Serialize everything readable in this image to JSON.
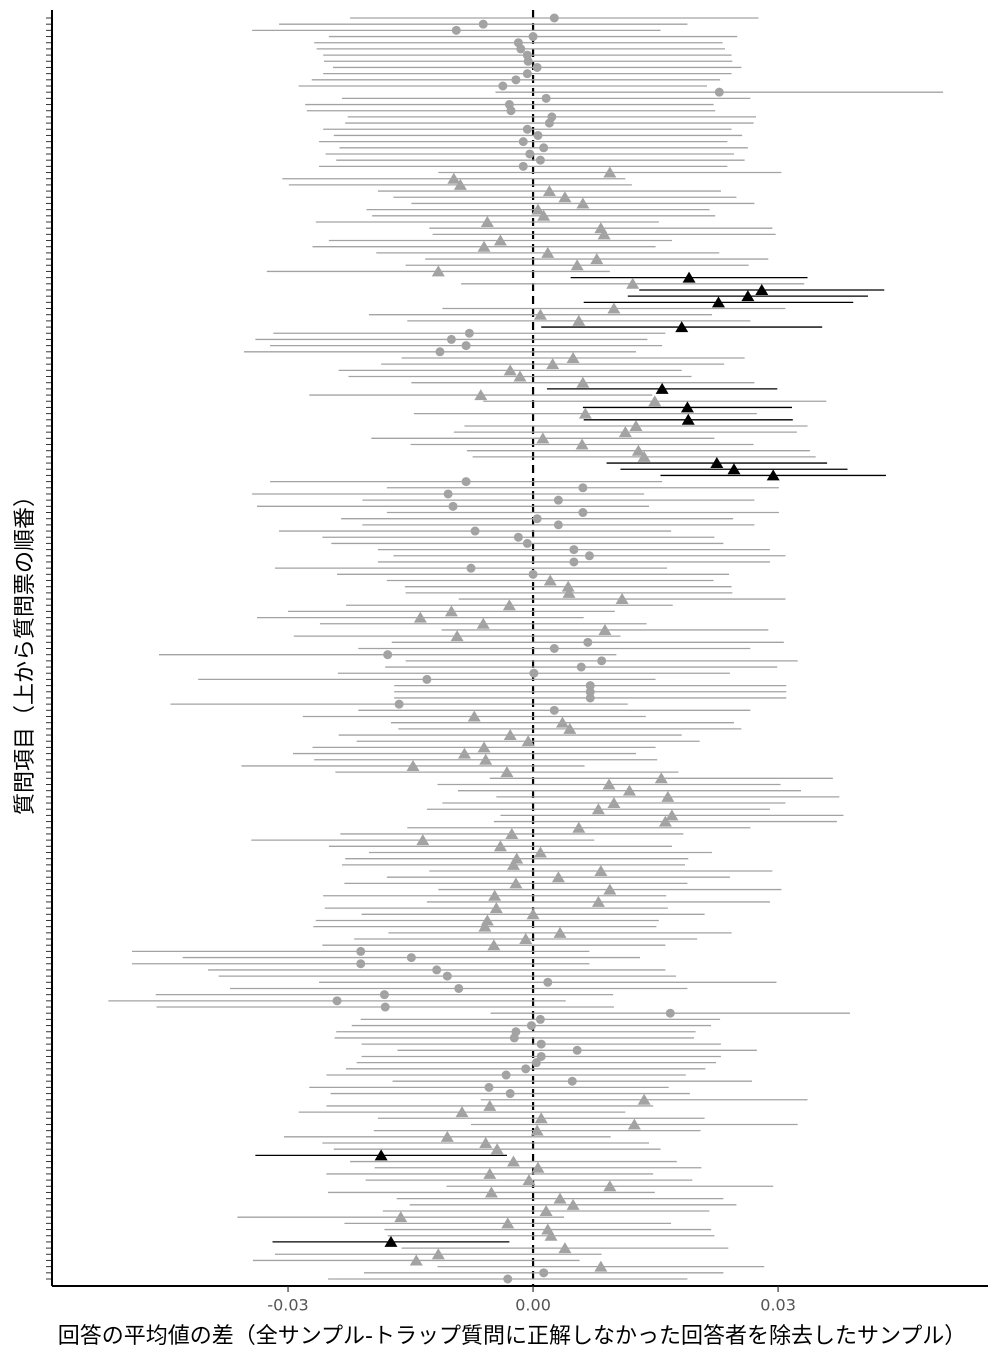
{
  "chart_data": {
    "type": "forest",
    "x_label": "回答の平均値の差（全サンプル-トラップ質問に正解しなかった回答者を除去したサンプル）",
    "y_label": "質問項目（上から質問票の順番）",
    "xlim": [
      -0.0589,
      0.0557
    ],
    "xticks": [
      -0.03,
      {
        "value": 0,
        "label": "0.00"
      },
      0.03
    ],
    "reference_line": 0,
    "color": "#a3a3a3",
    "highlight_color": "#000000",
    "highlighted": [
      42,
      44,
      45,
      46,
      50,
      60,
      63,
      65,
      72,
      73,
      74,
      184,
      198
    ],
    "categories": [
      null,
      null,
      null,
      null,
      null,
      null,
      null,
      null,
      null,
      null,
      null,
      null,
      null,
      null,
      null,
      null,
      null,
      null,
      null,
      null,
      null,
      null,
      null,
      null,
      null,
      null,
      null,
      null,
      null,
      null,
      null,
      null,
      null,
      null,
      null,
      null,
      null,
      null,
      null,
      null,
      null,
      null,
      null,
      null,
      null,
      null,
      null,
      null,
      null,
      null,
      null,
      null,
      null,
      null,
      null,
      null,
      null,
      null,
      null,
      null,
      null,
      null,
      null,
      null,
      null,
      null,
      null,
      null,
      null,
      null,
      null,
      null,
      null,
      null,
      null,
      null,
      null,
      null,
      null,
      null,
      null,
      null,
      null,
      null,
      null,
      null,
      null,
      null,
      null,
      null,
      null,
      null,
      null,
      null,
      null,
      null,
      null,
      null,
      null,
      null,
      null,
      null,
      null,
      null,
      null,
      null,
      null,
      null,
      null,
      null,
      null,
      null,
      null,
      null,
      null,
      null,
      null,
      null,
      null,
      null,
      null,
      null,
      null,
      null,
      null,
      null,
      null,
      null,
      null,
      null,
      null,
      null,
      null,
      null,
      null,
      null,
      null,
      null,
      null,
      null,
      null,
      null,
      null,
      null,
      null,
      null,
      null,
      null,
      null,
      null,
      null,
      null,
      null,
      null,
      null,
      null,
      null,
      null,
      null,
      null,
      null,
      null,
      null,
      null,
      null,
      null,
      null,
      null,
      null,
      null,
      null,
      null,
      null,
      null,
      null,
      null,
      null,
      null,
      null,
      null,
      null,
      null,
      null,
      null,
      null,
      null,
      null,
      null,
      null,
      null,
      null,
      null,
      null,
      null,
      null,
      null,
      null,
      null,
      null,
      null,
      null,
      null,
      null,
      null,
      null
    ],
    "values": [
      0.0026,
      -0.0061,
      -0.0094,
      0,
      -0.0018,
      -0.0015,
      -0.0007,
      -0.0006,
      0.0005,
      -0.0007,
      -0.0021,
      -0.0037,
      0.0228,
      0.0016,
      -0.0029,
      -0.0027,
      0.0023,
      0.002,
      -0.0007,
      0.0006,
      -0.0012,
      0.0013,
      -0.0004,
      0.0009,
      -0.0012,
      0.0094,
      -0.0097,
      -0.0089,
      0.002,
      0.0039,
      0.0061,
      0.0006,
      0.0013,
      -0.0056,
      0.0083,
      0.0087,
      -0.004,
      -0.006,
      0.0018,
      0.0078,
      0.0054,
      -0.0116,
      0.0191,
      0.0122,
      0.028,
      0.0263,
      0.0227,
      0.0099,
      0.0009,
      0.0056,
      0.0182,
      -0.0078,
      -0.01,
      -0.0082,
      -0.0114,
      0.0049,
      0.0024,
      -0.0028,
      -0.0016,
      0.0061,
      0.0158,
      -0.0064,
      0.0149,
      0.0189,
      0.0064,
      0.019,
      0.0126,
      0.0113,
      0.0012,
      0.006,
      0.0129,
      0.0136,
      0.0225,
      0.0246,
      0.0294,
      -0.0082,
      0.0061,
      -0.0104,
      0.0031,
      -0.0098,
      0.0061,
      0.0005,
      0.0031,
      -0.0071,
      -0.0018,
      -0.0007,
      0.005,
      0.0069,
      0.005,
      -0.0076,
      0,
      0.0021,
      0.0043,
      0.0044,
      0.0109,
      -0.0029,
      -0.01,
      -0.0138,
      -0.0061,
      0.0088,
      -0.0093,
      0.0067,
      0.0026,
      -0.0178,
      0.0084,
      0.0059,
      0.0001,
      -0.013,
      0.007,
      0.007,
      0.007,
      -0.0164,
      0.0026,
      -0.0072,
      0.0036,
      0.0045,
      -0.0028,
      -0.0006,
      -0.006,
      -0.0084,
      -0.0058,
      -0.0147,
      -0.0032,
      0.0157,
      0.0093,
      0.0118,
      0.0165,
      0.0099,
      0.008,
      0.017,
      0.0162,
      0.0056,
      -0.0026,
      -0.0135,
      -0.004,
      0.0009,
      -0.002,
      -0.0024,
      0.0083,
      0.0031,
      -0.0021,
      0.0094,
      -0.0047,
      0.008,
      -0.0045,
      0,
      -0.0056,
      -0.0059,
      0.0033,
      -0.0009,
      -0.0048,
      -0.0211,
      -0.0149,
      -0.0211,
      -0.0118,
      -0.0105,
      0.0018,
      -0.0091,
      -0.0182,
      -0.024,
      -0.0181,
      0.0168,
      0.0009,
      -0.0002,
      -0.0021,
      -0.0023,
      0.001,
      0.0054,
      0.001,
      0.0004,
      -0.0009,
      -0.0033,
      0.0048,
      -0.0054,
      -0.0028,
      0.0136,
      -0.0053,
      -0.0087,
      0.001,
      0.0124,
      0.0005,
      -0.0105,
      -0.0058,
      -0.0044,
      -0.0186,
      -0.0024,
      0.0006,
      -0.0053,
      -0.0005,
      0.0094,
      -0.0051,
      0.0033,
      0.0049,
      0.0016,
      -0.0162,
      -0.0031,
      0.0018,
      0.0022,
      -0.0174,
      0.0039,
      -0.0116,
      -0.0143,
      0.0083,
      0.0013,
      -0.0031
    ],
    "errors": [
      0.025,
      0.025,
      0.025,
      0.025,
      0.025,
      0.025,
      0.025,
      0.025,
      0.025,
      0.025,
      0.025,
      0.025,
      0.0274,
      0.025,
      0.025,
      0.025,
      0.025,
      0.025,
      0.025,
      0.025,
      0.025,
      0.025,
      0.025,
      0.025,
      0.025,
      0.021,
      0.021,
      0.021,
      0.021,
      0.021,
      0.021,
      0.021,
      0.021,
      0.021,
      0.021,
      0.021,
      0.021,
      0.021,
      0.021,
      0.021,
      0.021,
      0.021,
      0.0145,
      0.021,
      0.015,
      0.0147,
      0.0165,
      0.021,
      0.021,
      0.021,
      0.0172,
      0.024,
      0.024,
      0.024,
      0.024,
      0.021,
      0.021,
      0.021,
      0.021,
      0.021,
      0.0141,
      0.021,
      0.021,
      0.0128,
      0.021,
      0.0128,
      0.021,
      0.021,
      0.021,
      0.021,
      0.021,
      0.021,
      0.0135,
      0.0139,
      0.0138,
      0.024,
      0.024,
      0.024,
      0.024,
      0.024,
      0.024,
      0.024,
      0.024,
      0.024,
      0.024,
      0.024,
      0.024,
      0.024,
      0.024,
      0.024,
      0.024,
      0.02,
      0.02,
      0.02,
      0.02,
      0.02,
      0.02,
      0.02,
      0.02,
      0.02,
      0.02,
      0.024,
      0.024,
      0.028,
      0.024,
      0.024,
      0.024,
      0.028,
      0.024,
      0.024,
      0.024,
      0.028,
      0.024,
      0.021,
      0.021,
      0.021,
      0.021,
      0.021,
      0.021,
      0.021,
      0.021,
      0.021,
      0.021,
      0.021,
      0.021,
      0.021,
      0.021,
      0.021,
      0.021,
      0.021,
      0.021,
      0.021,
      0.021,
      0.021,
      0.021,
      0.021,
      0.021,
      0.021,
      0.021,
      0.021,
      0.021,
      0.021,
      0.021,
      0.021,
      0.021,
      0.021,
      0.021,
      0.021,
      0.021,
      0.021,
      0.021,
      0.028,
      0.028,
      0.028,
      0.028,
      0.028,
      0.028,
      0.028,
      0.028,
      0.028,
      0.028,
      0.022,
      0.022,
      0.022,
      0.022,
      0.022,
      0.022,
      0.022,
      0.022,
      0.022,
      0.022,
      0.022,
      0.022,
      0.022,
      0.022,
      0.02,
      0.02,
      0.02,
      0.02,
      0.02,
      0.02,
      0.02,
      0.02,
      0.02,
      0.0154,
      0.02,
      0.02,
      0.02,
      0.02,
      0.02,
      0.02,
      0.02,
      0.02,
      0.02,
      0.02,
      0.02,
      0.02,
      0.02,
      0.0145,
      0.02,
      0.02,
      0.02,
      0.02,
      0.022,
      0.022
    ],
    "markers": [
      "circle",
      "circle",
      "circle",
      "circle",
      "circle",
      "circle",
      "circle",
      "circle",
      "circle",
      "circle",
      "circle",
      "circle",
      "circle",
      "circle",
      "circle",
      "circle",
      "circle",
      "circle",
      "circle",
      "circle",
      "circle",
      "circle",
      "circle",
      "circle",
      "circle",
      "triangle",
      "triangle",
      "triangle",
      "triangle",
      "triangle",
      "triangle",
      "triangle",
      "triangle",
      "triangle",
      "triangle",
      "triangle",
      "triangle",
      "triangle",
      "triangle",
      "triangle",
      "triangle",
      "triangle",
      "triangle",
      "triangle",
      "triangle",
      "triangle",
      "triangle",
      "triangle",
      "triangle",
      "triangle",
      "triangle",
      "circle",
      "circle",
      "circle",
      "circle",
      "triangle",
      "triangle",
      "triangle",
      "triangle",
      "triangle",
      "triangle",
      "triangle",
      "triangle",
      "triangle",
      "triangle",
      "triangle",
      "triangle",
      "triangle",
      "triangle",
      "triangle",
      "triangle",
      "triangle",
      "triangle",
      "triangle",
      "triangle",
      "circle",
      "circle",
      "circle",
      "circle",
      "circle",
      "circle",
      "circle",
      "circle",
      "circle",
      "circle",
      "circle",
      "circle",
      "circle",
      "circle",
      "circle",
      "circle",
      "triangle",
      "triangle",
      "triangle",
      "triangle",
      "triangle",
      "triangle",
      "triangle",
      "triangle",
      "triangle",
      "triangle",
      "circle",
      "circle",
      "circle",
      "circle",
      "circle",
      "circle",
      "circle",
      "circle",
      "circle",
      "circle",
      "circle",
      "circle",
      "triangle",
      "triangle",
      "triangle",
      "triangle",
      "triangle",
      "triangle",
      "triangle",
      "triangle",
      "triangle",
      "triangle",
      "triangle",
      "triangle",
      "triangle",
      "triangle",
      "triangle",
      "triangle",
      "triangle",
      "triangle",
      "triangle",
      "triangle",
      "triangle",
      "triangle",
      "triangle",
      "triangle",
      "triangle",
      "triangle",
      "triangle",
      "triangle",
      "triangle",
      "triangle",
      "triangle",
      "triangle",
      "triangle",
      "triangle",
      "triangle",
      "triangle",
      "triangle",
      "triangle",
      "circle",
      "circle",
      "circle",
      "circle",
      "circle",
      "circle",
      "circle",
      "circle",
      "circle",
      "circle",
      "circle",
      "circle",
      "circle",
      "circle",
      "circle",
      "circle",
      "circle",
      "circle",
      "circle",
      "circle",
      "circle",
      "circle",
      "circle",
      "circle",
      "triangle",
      "triangle",
      "triangle",
      "triangle",
      "triangle",
      "triangle",
      "triangle",
      "triangle",
      "triangle",
      "triangle",
      "triangle",
      "triangle",
      "triangle",
      "triangle",
      "triangle",
      "triangle",
      "triangle",
      "triangle",
      "triangle",
      "triangle",
      "triangle",
      "triangle",
      "triangle",
      "triangle",
      "triangle",
      "triangle",
      "triangle",
      "triangle",
      "circle",
      "circle"
    ]
  }
}
